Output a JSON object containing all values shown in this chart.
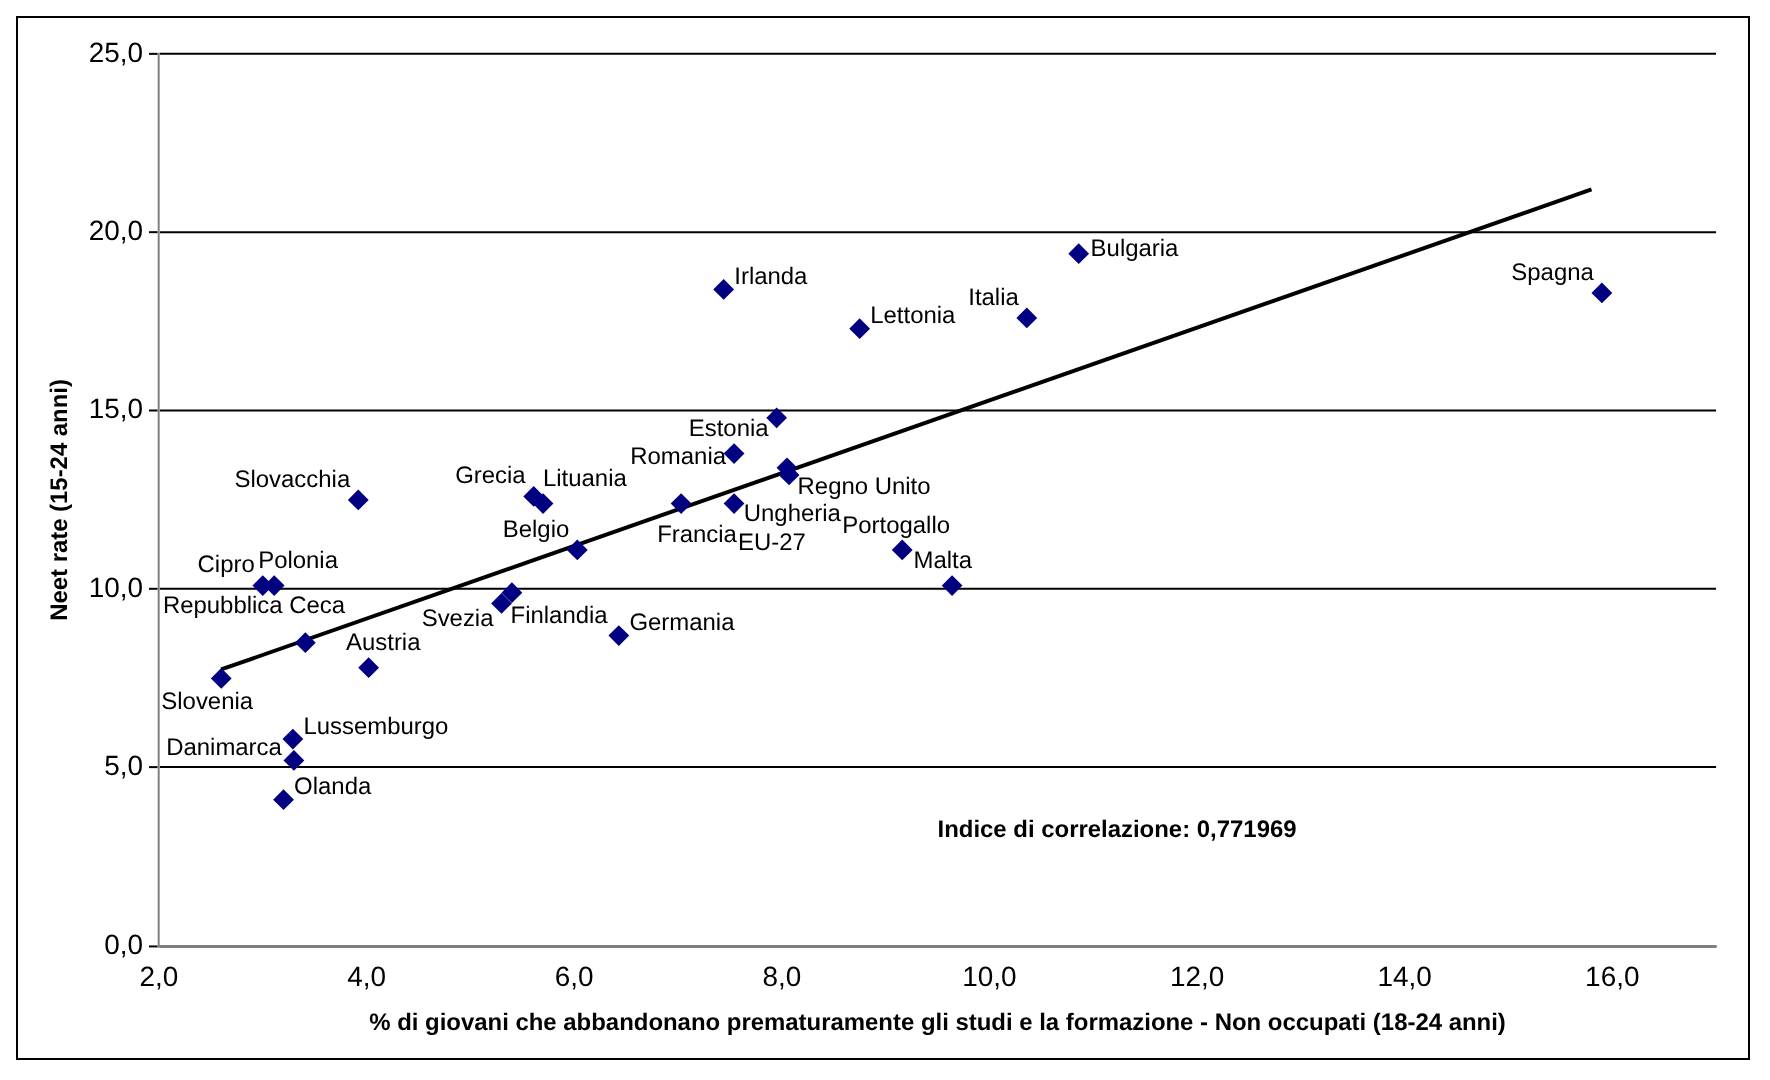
{
  "chart_data": {
    "type": "scatter",
    "xlabel": "% di giovani che abbandonano prematuramente gli studi e la formazione - Non occupati (18-24 anni)",
    "ylabel": "Neet rate (15-24 anni)",
    "series": [
      {
        "color": "#000080",
        "marker": "diamond",
        "x": [
          3.92,
          5.61,
          5.7,
          6.03,
          3.0,
          3.11,
          5.4,
          5.3,
          6.43,
          3.41,
          4.02,
          2.6,
          3.29,
          3.3,
          3.2,
          7.44,
          8.75,
          10.36,
          7.95,
          7.54,
          8.05,
          8.07,
          7.03,
          7.54,
          9.16,
          10.86,
          15.9,
          9.64
        ],
        "values": [
          12.5,
          12.6,
          12.4,
          11.1,
          10.1,
          10.1,
          9.9,
          9.6,
          8.7,
          8.5,
          7.8,
          7.5,
          5.8,
          5.2,
          4.1,
          18.4,
          17.3,
          17.6,
          14.8,
          13.8,
          13.4,
          13.2,
          12.4,
          12.4,
          11.1,
          19.4,
          18.3,
          10.1
        ]
      },
      {
        "type": "line",
        "color": "#000000",
        "marker": "none",
        "line_style": "solid",
        "x": [
          2.6,
          15.8
        ],
        "values": [
          7.75,
          21.2
        ]
      }
    ],
    "xlim": [
      2,
      17
    ],
    "xticks": [
      {
        "value": 2,
        "label": "2,0"
      },
      {
        "value": 4,
        "label": "4,0"
      },
      {
        "value": 6,
        "label": "6,0"
      },
      {
        "value": 8,
        "label": "8,0"
      },
      {
        "value": 10,
        "label": "10,0"
      },
      {
        "value": 12,
        "label": "12,0"
      },
      {
        "value": 14,
        "label": "14,0"
      },
      {
        "value": 16,
        "label": "16,0"
      }
    ],
    "ylim": [
      0,
      25
    ],
    "yticks": [
      {
        "value": 0,
        "label": "0,0"
      },
      {
        "value": 5,
        "label": "5,0"
      },
      {
        "value": 10,
        "label": "10,0"
      },
      {
        "value": 15,
        "label": "15,0"
      },
      {
        "value": 20,
        "label": "20,0"
      },
      {
        "value": 25,
        "label": "25,0"
      }
    ],
    "grid": "y",
    "legend": false,
    "annotations": [
      {
        "text": "Slovacchia",
        "x": 3.92,
        "y": 12.5
      },
      {
        "text": "Grecia",
        "x": 5.61,
        "y": 12.6
      },
      {
        "text": "Lituania",
        "x": 5.7,
        "y": 12.4
      },
      {
        "text": "Belgio",
        "x": 6.03,
        "y": 11.1
      },
      {
        "text": "Cipro",
        "x": 3.0,
        "y": 10.1
      },
      {
        "text": "Polonia",
        "x": 3.11,
        "y": 10.1
      },
      {
        "text": "Finlandia",
        "x": 5.4,
        "y": 9.9
      },
      {
        "text": "Svezia",
        "x": 5.3,
        "y": 9.6
      },
      {
        "text": "Germania",
        "x": 6.43,
        "y": 8.7
      },
      {
        "text": "Repubblica Ceca",
        "x": 3.41,
        "y": 8.5
      },
      {
        "text": "Austria",
        "x": 4.02,
        "y": 7.8
      },
      {
        "text": "Slovenia",
        "x": 2.6,
        "y": 7.5
      },
      {
        "text": "Lussemburgo",
        "x": 3.29,
        "y": 5.8
      },
      {
        "text": "Danimarca",
        "x": 3.3,
        "y": 5.2
      },
      {
        "text": "Olanda",
        "x": 3.2,
        "y": 4.1
      },
      {
        "text": "Irlanda",
        "x": 7.44,
        "y": 18.4
      },
      {
        "text": "Lettonia",
        "x": 8.75,
        "y": 17.3
      },
      {
        "text": "Italia",
        "x": 10.36,
        "y": 17.6
      },
      {
        "text": "Estonia",
        "x": 7.95,
        "y": 14.8
      },
      {
        "text": "Romania",
        "x": 7.54,
        "y": 13.8
      },
      {
        "text": "Regno Unito",
        "x": 8.05,
        "y": 13.4
      },
      {
        "text": "Ungheria",
        "x": 8.07,
        "y": 13.2
      },
      {
        "text": "Francia",
        "x": 7.03,
        "y": 12.4
      },
      {
        "text": "EU-27",
        "x": 7.54,
        "y": 12.4
      },
      {
        "text": "Portogallo",
        "x": 9.16,
        "y": 11.1
      },
      {
        "text": "Bulgaria",
        "x": 10.86,
        "y": 19.4
      },
      {
        "text": "Spagna",
        "x": 15.9,
        "y": 18.3
      },
      {
        "text": "Malta",
        "x": 9.64,
        "y": 10.1
      },
      "Indice di correlazione: 0,771969"
    ]
  }
}
